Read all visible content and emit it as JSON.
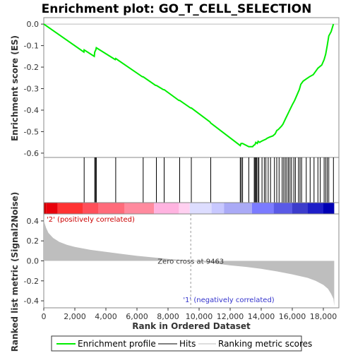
{
  "chart_data": {
    "type": "line",
    "title": "Enrichment plot: GO_T_CELL_SELECTION",
    "top_panel": {
      "ylabel": "Enrichment score (ES)",
      "ylim": [
        -0.62,
        0.03
      ],
      "yticks": [
        0.0,
        -0.1,
        -0.2,
        -0.3,
        -0.4,
        -0.5,
        -0.6
      ],
      "ytick_labels": [
        "0.0",
        "-0.1",
        "-0.2",
        "-0.3",
        "-0.4",
        "-0.5",
        "-0.6"
      ],
      "series": [
        {
          "name": "Enrichment profile",
          "color": "#00ee00",
          "x": [
            0,
            2580,
            2600,
            3250,
            3280,
            3350,
            3380,
            4600,
            4630,
            6350,
            6400,
            7200,
            7250,
            7700,
            7750,
            8700,
            8750,
            9450,
            9500,
            10700,
            10750,
            12650,
            12700,
            12800,
            13200,
            13450,
            13500,
            13600,
            13650,
            13750,
            13800,
            13900,
            14000,
            14150,
            14300,
            14400,
            14550,
            14750,
            14900,
            15000,
            15100,
            15300,
            15400,
            15500,
            15600,
            15700,
            15800,
            15900,
            16000,
            16150,
            16300,
            16450,
            16550,
            16700,
            16900,
            17100,
            17350,
            17500,
            17650,
            17900,
            18050,
            18150,
            18250,
            18350,
            18500,
            18650
          ],
          "y": [
            0.0,
            -0.13,
            -0.12,
            -0.15,
            -0.13,
            -0.12,
            -0.11,
            -0.165,
            -0.16,
            -0.245,
            -0.245,
            -0.285,
            -0.285,
            -0.305,
            -0.305,
            -0.355,
            -0.355,
            -0.39,
            -0.39,
            -0.455,
            -0.46,
            -0.565,
            -0.555,
            -0.555,
            -0.57,
            -0.57,
            -0.565,
            -0.56,
            -0.55,
            -0.555,
            -0.545,
            -0.55,
            -0.545,
            -0.54,
            -0.535,
            -0.53,
            -0.525,
            -0.52,
            -0.51,
            -0.495,
            -0.49,
            -0.475,
            -0.465,
            -0.45,
            -0.435,
            -0.42,
            -0.405,
            -0.39,
            -0.375,
            -0.355,
            -0.33,
            -0.305,
            -0.28,
            -0.265,
            -0.255,
            -0.245,
            -0.235,
            -0.22,
            -0.205,
            -0.19,
            -0.165,
            -0.14,
            -0.1,
            -0.055,
            -0.035,
            0.0
          ]
        }
      ]
    },
    "hits": {
      "name": "Hits",
      "color": "#000000",
      "x": [
        2600,
        3280,
        3330,
        3380,
        4630,
        6400,
        7250,
        7750,
        8750,
        9500,
        10750,
        12650,
        12720,
        12800,
        13200,
        13550,
        13600,
        13650,
        13700,
        13780,
        13850,
        14050,
        14200,
        14300,
        14450,
        14600,
        14850,
        15000,
        15150,
        15350,
        15450,
        15550,
        15650,
        15750,
        15850,
        15950,
        16100,
        16200,
        16400,
        16500,
        16600,
        16900,
        17150,
        17400,
        17650,
        17800,
        18050,
        18150,
        18250,
        18350,
        18650
      ]
    },
    "bottom_panel": {
      "ylabel": "Ranked list metric (Signal2Noise)",
      "xlabel": "Rank in Ordered Dataset",
      "xlim": [
        0,
        19000
      ],
      "xticks": [
        0,
        2000,
        4000,
        6000,
        8000,
        10000,
        12000,
        14000,
        16000,
        18000
      ],
      "xtick_labels": [
        "0",
        "2,000",
        "4,000",
        "6,000",
        "8,000",
        "10,000",
        "12,000",
        "14,000",
        "16,000",
        "18,000"
      ],
      "ylim": [
        -0.47,
        0.47
      ],
      "yticks": [
        0.4,
        0.2,
        0.0,
        -0.2,
        -0.4
      ],
      "ytick_labels": [
        "0.4",
        "0.2",
        "0.0",
        "-0.2",
        "-0.4"
      ],
      "series": [
        {
          "name": "Ranking metric scores",
          "color": "#bebebe",
          "x": [
            0,
            50,
            150,
            300,
            600,
            1000,
            1500,
            2000,
            3000,
            4000,
            5000,
            6000,
            7000,
            8000,
            9000,
            9463,
            10000,
            11000,
            12000,
            13000,
            14000,
            15000,
            16000,
            17000,
            17500,
            18000,
            18300,
            18500,
            18650,
            18700
          ],
          "y": [
            0.42,
            0.38,
            0.33,
            0.28,
            0.23,
            0.19,
            0.16,
            0.14,
            0.11,
            0.09,
            0.07,
            0.05,
            0.035,
            0.02,
            0.008,
            0.0,
            -0.01,
            -0.025,
            -0.045,
            -0.06,
            -0.08,
            -0.105,
            -0.135,
            -0.17,
            -0.2,
            -0.24,
            -0.28,
            -0.33,
            -0.38,
            -0.45
          ]
        }
      ],
      "annotations": {
        "positive": "'2' (positively correlated)",
        "zero_cross": "Zero cross at 9463",
        "negative": "'1' (negatively correlated)"
      },
      "zero_cross": 9463
    },
    "heatbar": {
      "segments": [
        {
          "start": 0,
          "end": 150,
          "color": "#cc0000"
        },
        {
          "start": 150,
          "end": 900,
          "color": "#e8000b"
        },
        {
          "start": 900,
          "end": 2500,
          "color": "#ff3333"
        },
        {
          "start": 2500,
          "end": 3500,
          "color": "#ff4f5a"
        },
        {
          "start": 3500,
          "end": 5200,
          "color": "#ff6b7a"
        },
        {
          "start": 5200,
          "end": 7100,
          "color": "#ff8a9e"
        },
        {
          "start": 7100,
          "end": 8700,
          "color": "#ffb3e0"
        },
        {
          "start": 8700,
          "end": 9400,
          "color": "#ffd0f0"
        },
        {
          "start": 9400,
          "end": 10800,
          "color": "#ddddff"
        },
        {
          "start": 10800,
          "end": 11600,
          "color": "#c8c8ff"
        },
        {
          "start": 11600,
          "end": 13400,
          "color": "#aaaaf6"
        },
        {
          "start": 13400,
          "end": 14800,
          "color": "#7b7bff"
        },
        {
          "start": 14800,
          "end": 16000,
          "color": "#5a5ae6"
        },
        {
          "start": 16000,
          "end": 17000,
          "color": "#3c3ccc"
        },
        {
          "start": 17000,
          "end": 18000,
          "color": "#1e1ec8"
        },
        {
          "start": 18000,
          "end": 18700,
          "color": "#0000b4"
        }
      ]
    },
    "legend": {
      "placement": "bottom",
      "items": [
        {
          "label": "Enrichment profile",
          "color": "#00ee00"
        },
        {
          "label": "Hits",
          "color": "#000000"
        },
        {
          "label": "Ranking metric scores",
          "color": "#bebebe"
        }
      ]
    }
  }
}
